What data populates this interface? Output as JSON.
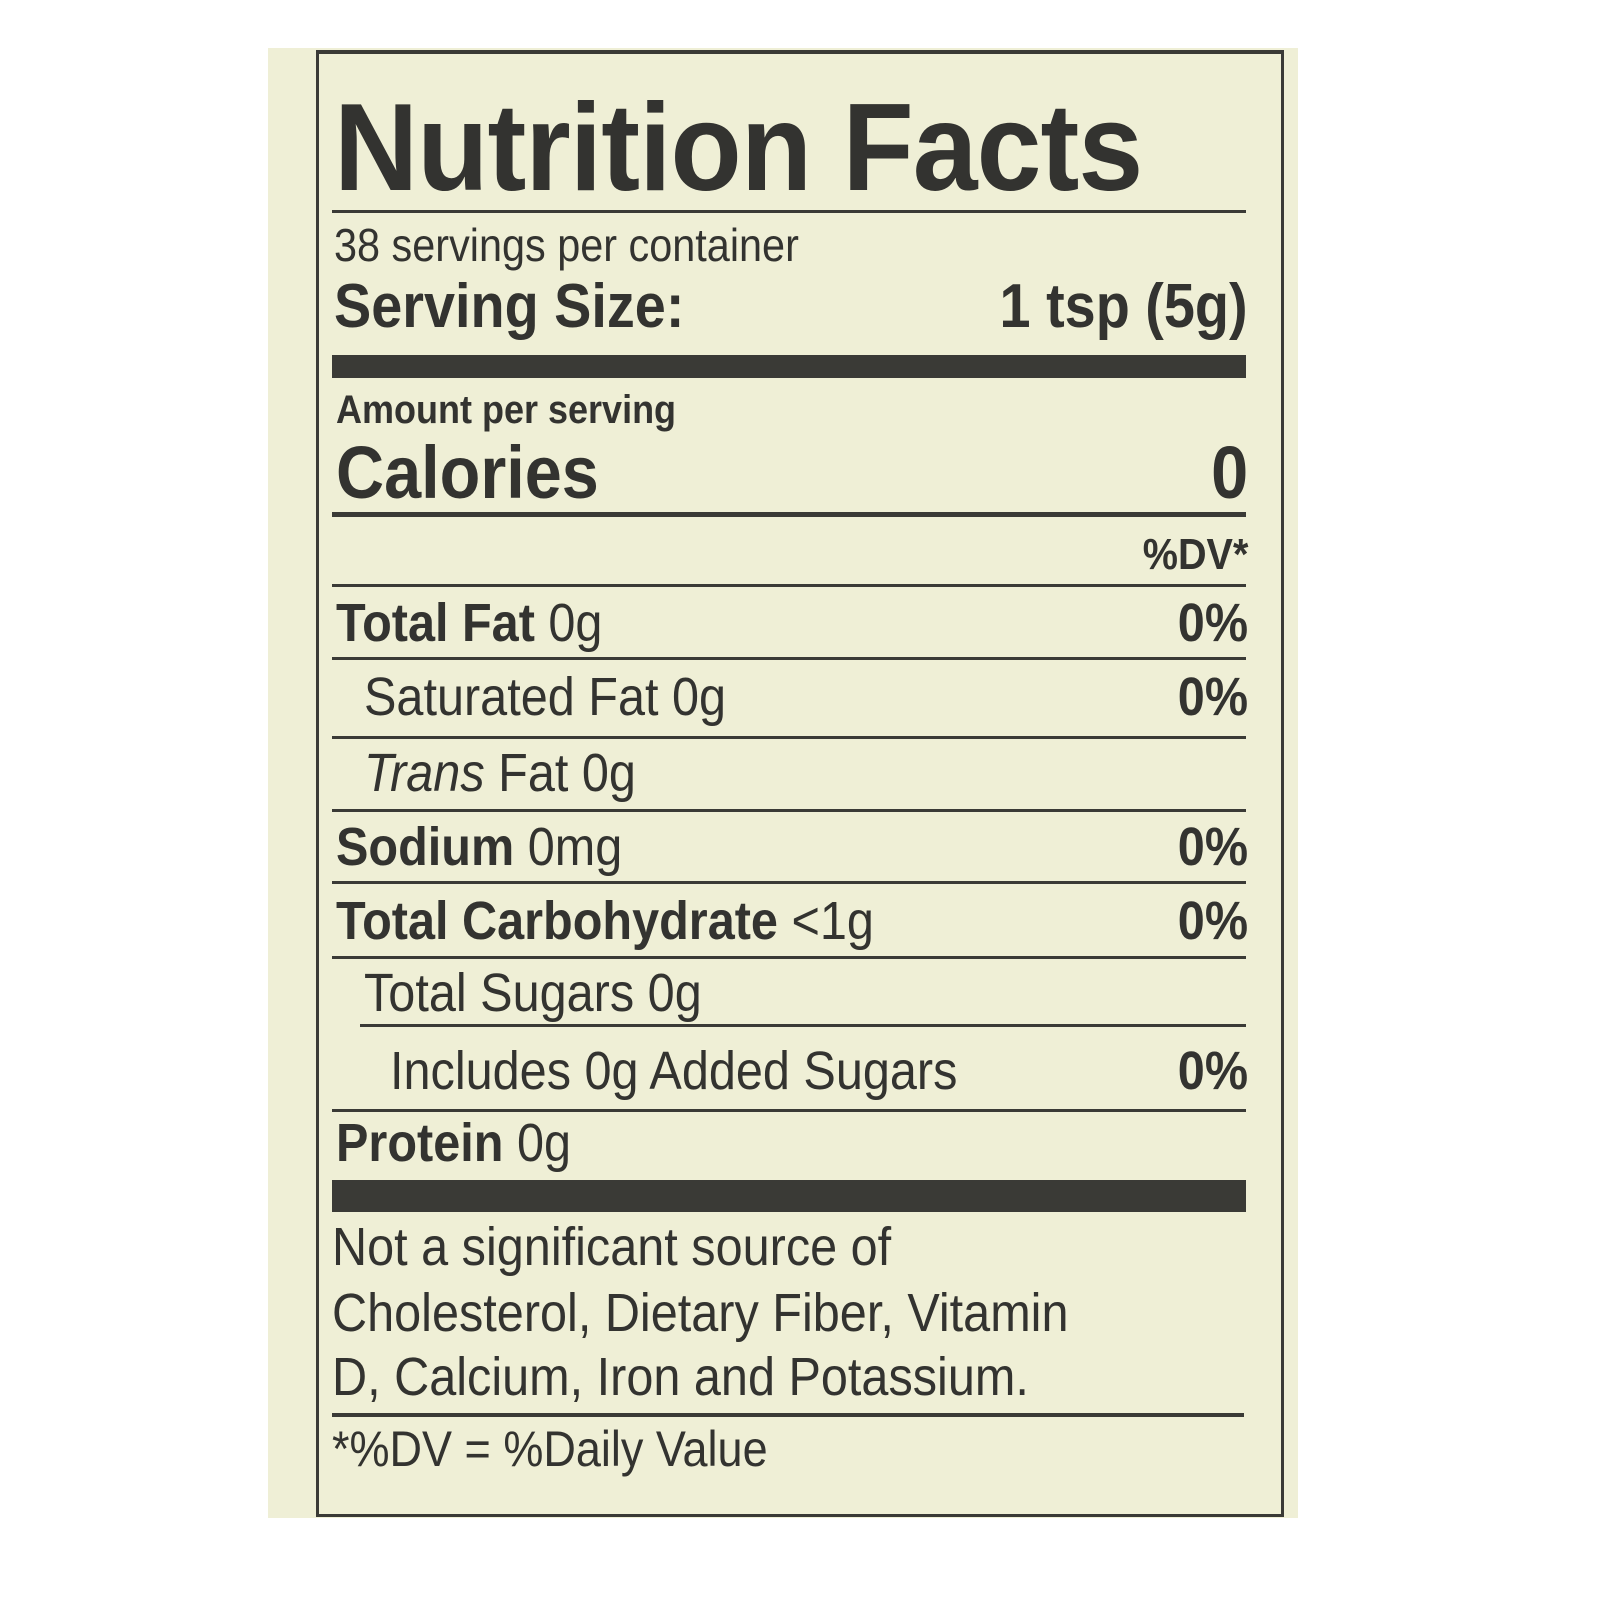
{
  "title": "Nutrition Facts",
  "servings_per_container": "38 servings per container",
  "serving_size": {
    "label": "Serving Size:",
    "value": "1 tsp (5g)"
  },
  "amount_per_serving": "Amount per serving",
  "calories": {
    "label": "Calories",
    "value": "0"
  },
  "dv_header": "%DV*",
  "nutrients": [
    {
      "name": "Total Fat",
      "amount": "0g",
      "dv": "0%"
    },
    {
      "name": "Saturated Fat",
      "amount": "0g",
      "dv": "0%"
    },
    {
      "name_italic": "Trans",
      "name": "Fat",
      "amount": "0g",
      "dv": ""
    },
    {
      "name": "Sodium",
      "amount": "0mg",
      "dv": "0%"
    },
    {
      "name": "Total Carbohydrate",
      "amount": "<1g",
      "dv": "0%"
    },
    {
      "name": "Total Sugars",
      "amount": "0g",
      "dv": ""
    },
    {
      "name": "Includes 0g Added Sugars",
      "amount": "",
      "dv": "0%"
    },
    {
      "name": "Protein",
      "amount": "0g",
      "dv": ""
    }
  ],
  "footnote": {
    "lines": [
      "Not a significant source of",
      "Cholesterol, Dietary Fiber, Vitamin",
      "D, Calcium, Iron and Potassium."
    ],
    "dv_definition": "*%DV = %Daily Value"
  },
  "colors": {
    "label_background": "#efefd6",
    "ink": "#333330"
  }
}
